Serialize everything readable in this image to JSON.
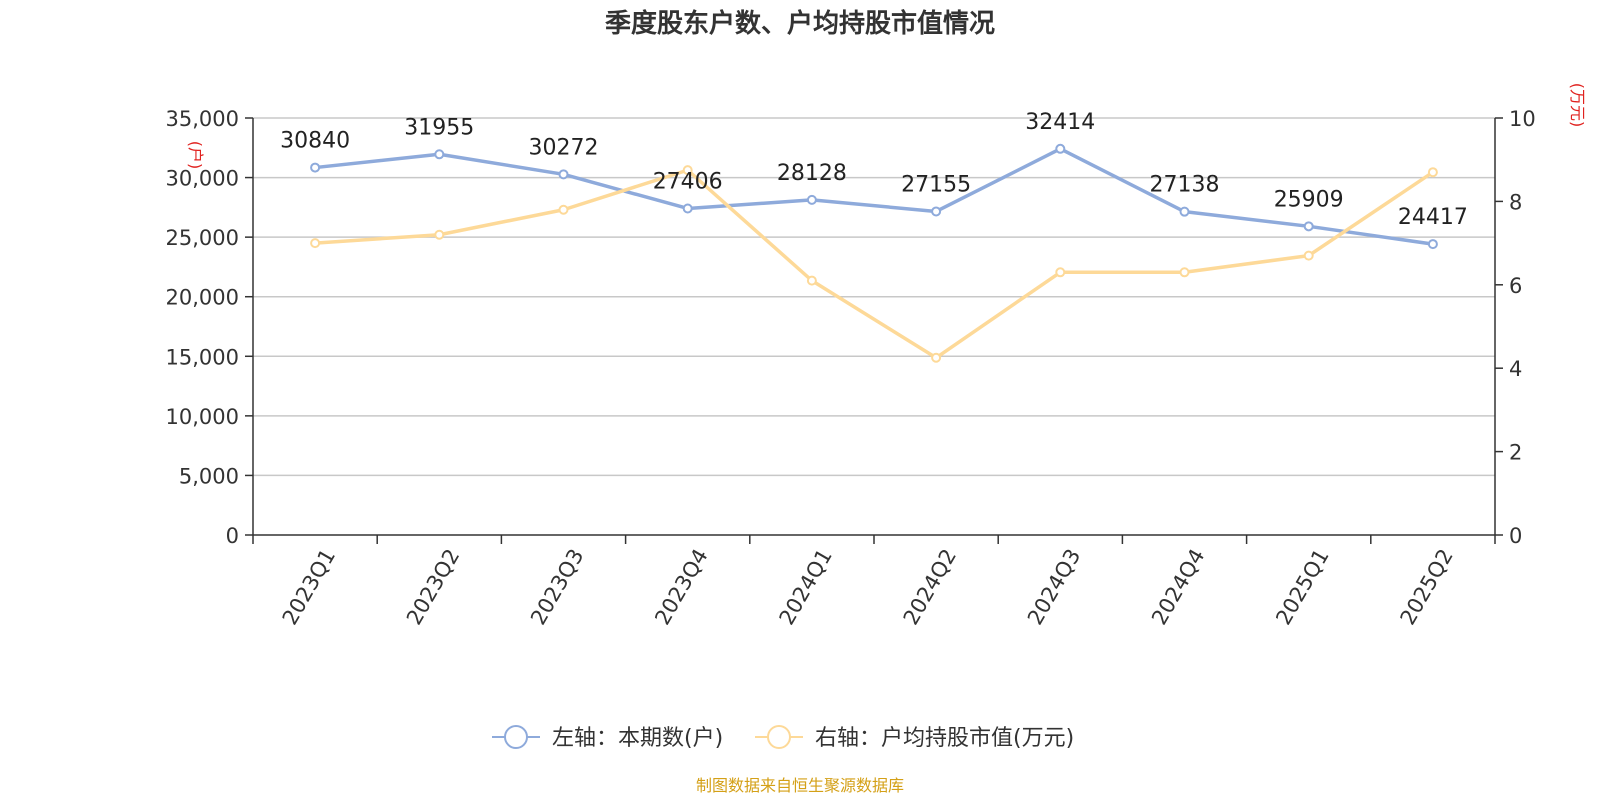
{
  "chart_data": {
    "type": "line",
    "title": "季度股东户数、户均持股市值情况",
    "categories": [
      "2023Q1",
      "2023Q2",
      "2023Q3",
      "2023Q4",
      "2024Q1",
      "2024Q2",
      "2024Q3",
      "2024Q4",
      "2025Q1",
      "2025Q2"
    ],
    "left_axis": {
      "unit": "(户)",
      "ylim": [
        0,
        35000
      ],
      "ticks": [
        0,
        5000,
        10000,
        15000,
        20000,
        25000,
        30000,
        35000
      ],
      "tick_labels": [
        "0",
        "5,000",
        "10,000",
        "15,000",
        "20,000",
        "25,000",
        "30,000",
        "35,000"
      ]
    },
    "right_axis": {
      "unit": "(万元)",
      "ylim": [
        0,
        10
      ],
      "ticks": [
        0,
        2,
        4,
        6,
        8,
        10
      ],
      "tick_labels": [
        "0",
        "2",
        "4",
        "6",
        "8",
        "10"
      ]
    },
    "series": [
      {
        "name": "左轴：本期数(户)",
        "axis": "left",
        "color": "#8eaadb",
        "values": [
          30840,
          31955,
          30272,
          27406,
          28128,
          27155,
          32414,
          27138,
          25909,
          24417
        ],
        "labels": [
          "30840",
          "31955",
          "30272",
          "27406",
          "28128",
          "27155",
          "32414",
          "27138",
          "25909",
          "24417"
        ]
      },
      {
        "name": "右轴：户均持股市值(万元)",
        "axis": "right",
        "color": "#fdd998",
        "values": [
          7.0,
          7.2,
          7.8,
          8.75,
          6.1,
          4.25,
          6.3,
          6.3,
          6.7,
          8.7
        ]
      }
    ],
    "legend_position": "bottom-center",
    "grid": true
  },
  "source": "制图数据来自恒生聚源数据库"
}
